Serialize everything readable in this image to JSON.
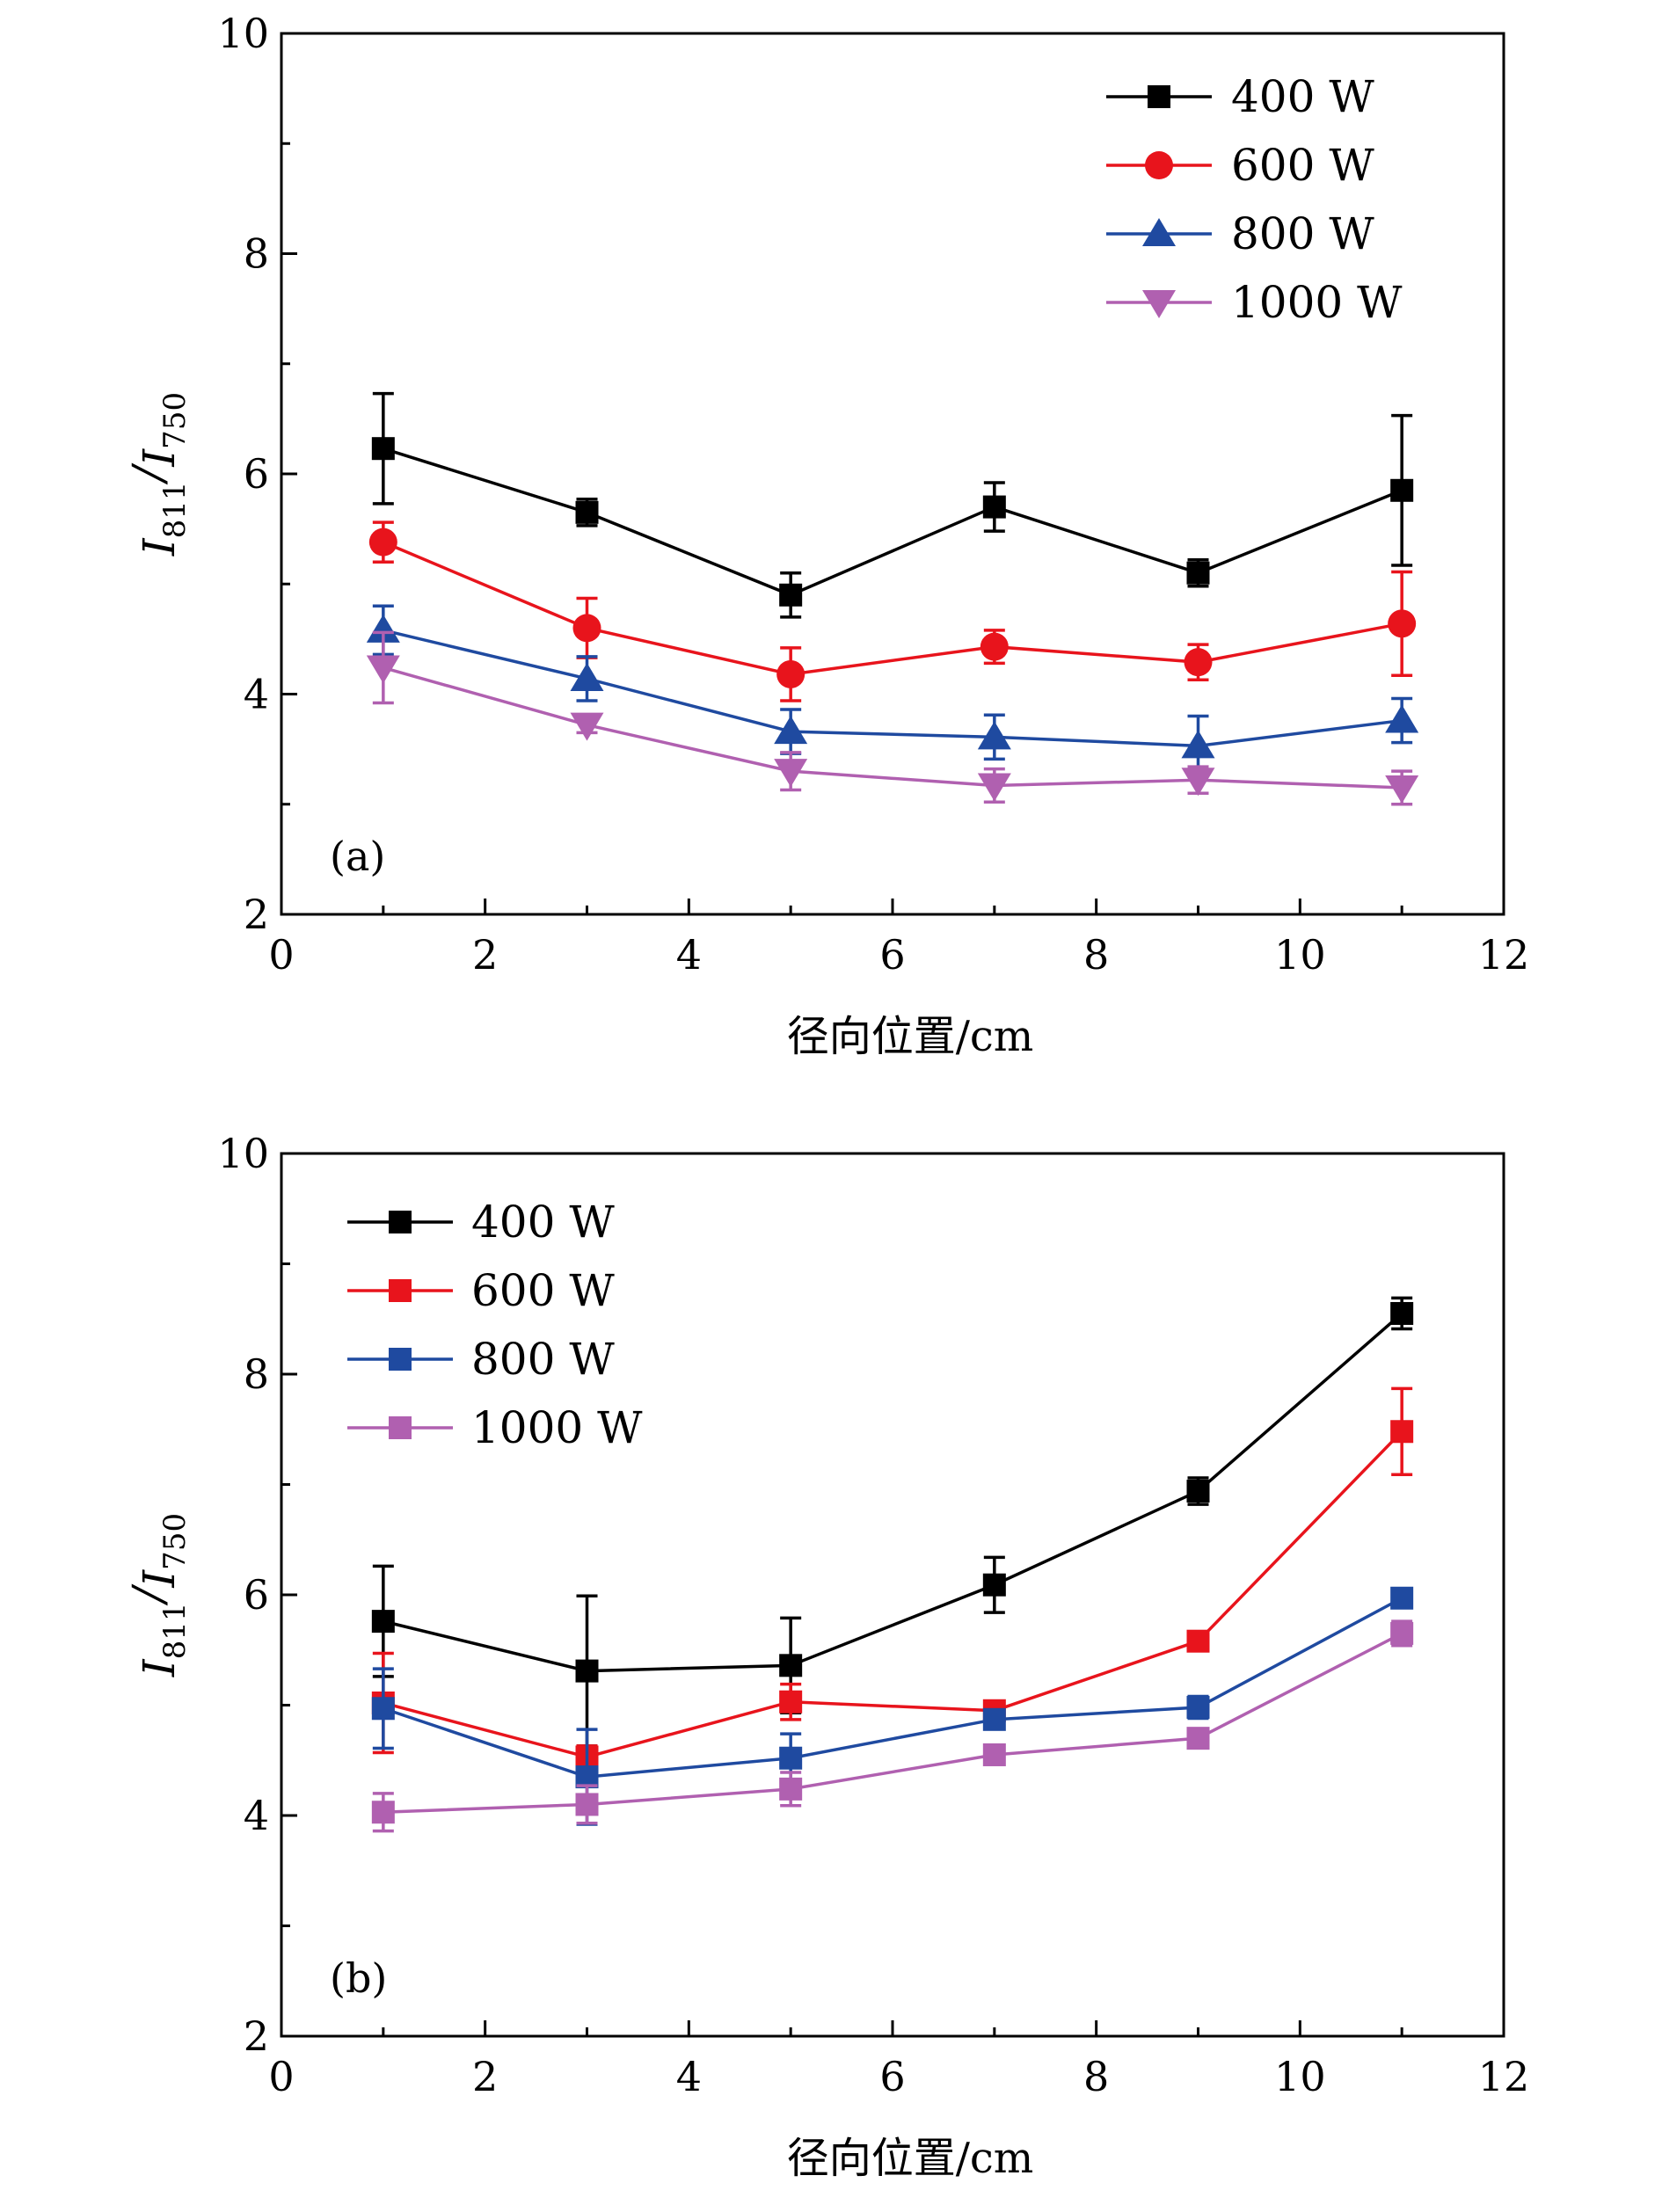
{
  "colors": {
    "400 W": "#000000",
    "600 W": "#e8141c",
    "800 W": "#1f4aa0",
    "1000 W": "#b060b0"
  },
  "chart_data": [
    {
      "type": "line",
      "panel_label": "(a)",
      "xlabel": "径向位置/cm",
      "ylabel": {
        "main": "I",
        "sub1": "811",
        "slash": "/",
        "main2": "I",
        "sub2": "750"
      },
      "xlim": [
        0,
        12
      ],
      "ylim": [
        2,
        10
      ],
      "xticks": [
        0,
        2,
        4,
        6,
        8,
        10,
        12
      ],
      "yticks": [
        2,
        4,
        6,
        8,
        10
      ],
      "xtick_labels": [
        "0",
        "2",
        "4",
        "6",
        "8",
        "10",
        "12"
      ],
      "ytick_labels": [
        "2",
        "4",
        "6",
        "8",
        "10"
      ],
      "legend_position": "top-right",
      "grid": false,
      "x": [
        1,
        3,
        5,
        7,
        9,
        11
      ],
      "series": [
        {
          "name": "400 W",
          "marker": "square",
          "values": [
            6.23,
            5.65,
            4.9,
            5.7,
            5.1,
            5.85
          ],
          "errors": [
            0.5,
            0.12,
            0.2,
            0.22,
            0.12,
            0.68
          ]
        },
        {
          "name": "600 W",
          "marker": "circle",
          "values": [
            5.38,
            4.6,
            4.18,
            4.43,
            4.29,
            4.64
          ],
          "errors": [
            0.18,
            0.27,
            0.24,
            0.15,
            0.16,
            0.47
          ]
        },
        {
          "name": "800 W",
          "marker": "triangle-up",
          "values": [
            4.58,
            4.14,
            3.66,
            3.61,
            3.53,
            3.76
          ],
          "errors": [
            0.22,
            0.2,
            0.2,
            0.2,
            0.27,
            0.2
          ]
        },
        {
          "name": "1000 W",
          "marker": "triangle-down",
          "values": [
            4.24,
            3.72,
            3.3,
            3.17,
            3.22,
            3.15
          ],
          "errors": [
            0.32,
            0.07,
            0.17,
            0.15,
            0.12,
            0.15
          ]
        }
      ]
    },
    {
      "type": "line",
      "panel_label": "(b)",
      "xlabel": "径向位置/cm",
      "ylabel": {
        "main": "I",
        "sub1": "811",
        "slash": "/",
        "main2": "I",
        "sub2": "750"
      },
      "xlim": [
        0,
        12
      ],
      "ylim": [
        2,
        10
      ],
      "xticks": [
        0,
        2,
        4,
        6,
        8,
        10,
        12
      ],
      "yticks": [
        2,
        4,
        6,
        8,
        10
      ],
      "xtick_labels": [
        "0",
        "2",
        "4",
        "6",
        "8",
        "10",
        "12"
      ],
      "ytick_labels": [
        "2",
        "4",
        "6",
        "8",
        "10"
      ],
      "legend_position": "top-left",
      "grid": false,
      "x": [
        1,
        3,
        5,
        7,
        9,
        11
      ],
      "series": [
        {
          "name": "400 W",
          "marker": "square",
          "values": [
            5.76,
            5.31,
            5.36,
            6.09,
            6.94,
            8.55
          ],
          "errors": [
            0.5,
            0.68,
            0.43,
            0.25,
            0.12,
            0.14
          ]
        },
        {
          "name": "600 W",
          "marker": "square",
          "values": [
            5.02,
            4.53,
            5.03,
            4.95,
            5.58,
            7.48
          ],
          "errors": [
            0.45,
            0.1,
            0.16,
            0.07,
            0.08,
            0.39
          ]
        },
        {
          "name": "800 W",
          "marker": "square",
          "values": [
            4.97,
            4.35,
            4.52,
            4.87,
            4.98,
            5.97
          ],
          "errors": [
            0.36,
            0.43,
            0.22,
            0.05,
            0.1,
            0.06
          ]
        },
        {
          "name": "1000 W",
          "marker": "square",
          "values": [
            4.03,
            4.1,
            4.24,
            4.55,
            4.7,
            5.65
          ],
          "errors": [
            0.17,
            0.17,
            0.15,
            0.06,
            0.07,
            0.11
          ]
        }
      ]
    }
  ]
}
